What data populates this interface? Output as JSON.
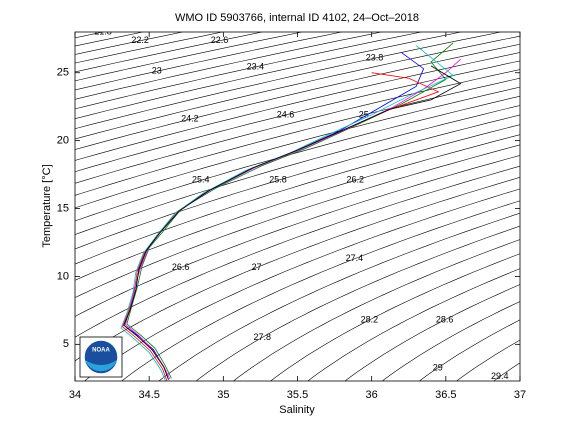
{
  "chart_data": {
    "type": "line",
    "title": "WMO ID 5903766, internal ID 4102, 24–Oct–2018",
    "xlabel": "Salinity",
    "ylabel": "Temperature [°C]",
    "xlim": [
      34,
      37
    ],
    "ylim": [
      2.3,
      28
    ],
    "xticks": [
      34,
      34.5,
      35,
      35.5,
      36,
      36.5,
      37
    ],
    "yticks": [
      5,
      10,
      15,
      20,
      25
    ],
    "contour_levels": [
      21.8,
      22,
      22.2,
      22.4,
      22.6,
      22.8,
      23,
      23.2,
      23.4,
      23.6,
      23.8,
      24,
      24.2,
      24.4,
      24.6,
      24.8,
      25,
      25.2,
      25.4,
      25.6,
      25.8,
      26,
      26.2,
      26.4,
      26.6,
      26.8,
      27,
      27.2,
      27.4,
      27.6,
      27.8,
      28,
      28.2,
      28.4,
      28.6,
      28.8,
      29,
      29.2,
      29.4,
      29.6
    ],
    "series": [
      {
        "color": "#0000ff",
        "x": [
          36.2,
          36.35,
          36.3,
          36.05,
          35.78,
          35.5,
          35.2,
          34.9,
          34.7,
          34.57,
          34.48,
          34.43,
          34.41,
          34.37,
          34.33,
          34.43,
          34.53,
          34.6,
          34.63
        ],
        "values": [
          26.5,
          25.3,
          24.0,
          22.4,
          20.7,
          19.3,
          18.0,
          16.3,
          14.8,
          13.2,
          11.9,
          10.5,
          9.0,
          7.5,
          6.4,
          5.6,
          4.6,
          3.3,
          2.4
        ]
      },
      {
        "color": "#008000",
        "x": [
          36.55,
          36.4,
          36.5,
          36.2,
          35.85,
          35.55,
          35.25,
          34.95,
          34.72,
          34.6,
          34.5,
          34.45,
          34.42,
          34.38,
          34.35,
          34.44,
          34.54,
          34.61,
          34.65
        ],
        "values": [
          27.2,
          25.8,
          24.5,
          22.7,
          20.9,
          19.4,
          18.1,
          16.5,
          15.0,
          13.4,
          12.1,
          10.7,
          9.2,
          7.7,
          6.5,
          5.7,
          4.7,
          3.4,
          2.5
        ]
      },
      {
        "color": "#ff0000",
        "x": [
          36.0,
          36.25,
          36.45,
          36.1,
          35.75,
          35.48,
          35.18,
          34.88,
          34.68,
          34.56,
          34.47,
          34.42,
          34.4,
          34.36,
          34.32,
          34.41,
          34.51,
          34.59,
          34.62
        ],
        "values": [
          25.0,
          24.6,
          23.6,
          22.2,
          20.5,
          19.2,
          17.9,
          16.2,
          14.7,
          13.1,
          11.8,
          10.4,
          8.9,
          7.4,
          6.3,
          5.5,
          4.5,
          3.2,
          2.3
        ]
      },
      {
        "color": "#ff00ff",
        "x": [
          36.6,
          36.5,
          36.35,
          36.15,
          35.82,
          35.52,
          35.22,
          34.92,
          34.71,
          34.58,
          34.49,
          34.44,
          34.4,
          34.37,
          34.34,
          34.43,
          34.52,
          34.6,
          34.64
        ],
        "values": [
          26.0,
          25.0,
          23.8,
          22.5,
          20.8,
          19.35,
          18.05,
          16.4,
          14.9,
          13.3,
          12.0,
          10.6,
          9.1,
          7.6,
          6.45,
          5.65,
          4.65,
          3.35,
          2.45
        ]
      },
      {
        "color": "#00bfbf",
        "x": [
          36.3,
          36.55,
          36.25,
          36.0,
          35.7,
          35.45,
          35.15,
          34.86,
          34.67,
          34.55,
          34.46,
          34.41,
          34.39,
          34.35,
          34.31,
          34.4,
          34.5,
          34.58,
          34.61
        ],
        "values": [
          27.0,
          24.8,
          23.3,
          21.9,
          20.4,
          19.1,
          17.8,
          16.1,
          14.6,
          13.0,
          11.7,
          10.3,
          8.8,
          7.3,
          6.2,
          5.4,
          4.4,
          3.1,
          2.3
        ]
      },
      {
        "color": "#000000",
        "x": [
          36.4,
          36.6,
          36.4,
          36.12,
          35.8,
          35.5,
          35.2,
          34.9,
          34.7,
          34.57,
          34.48,
          34.43,
          34.41,
          34.37,
          34.33,
          34.42,
          34.52,
          34.6,
          34.63
        ],
        "values": [
          25.5,
          24.2,
          23.0,
          22.3,
          20.75,
          19.3,
          18.0,
          16.3,
          14.8,
          13.2,
          11.9,
          10.5,
          9.0,
          7.5,
          6.4,
          5.6,
          4.6,
          3.3,
          2.4
        ]
      }
    ]
  }
}
